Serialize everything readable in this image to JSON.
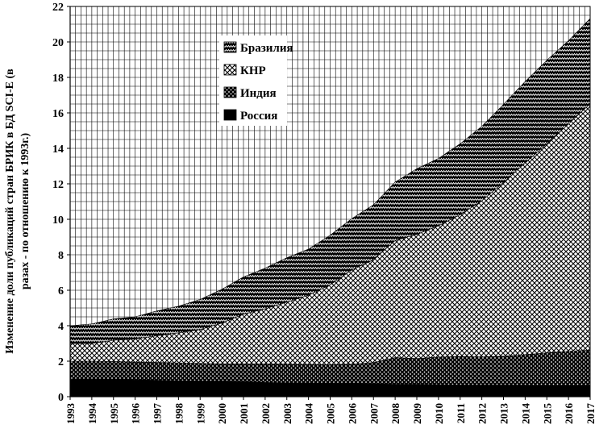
{
  "chart_data": {
    "type": "area",
    "stacked": true,
    "title": "",
    "ylabel_line1": "Изменение доли публикаций стран БРИК в БД SCI-E (в",
    "ylabel_line2": "разах - по отношению к 1993г.)",
    "xlabel": "",
    "ylim": [
      0,
      22
    ],
    "yticks": [
      "0",
      "2",
      "4",
      "6",
      "8",
      "10",
      "12",
      "14",
      "16",
      "18",
      "20",
      "22"
    ],
    "grid": true,
    "legend_position": "top-center",
    "x": [
      "1993",
      "1994",
      "1995",
      "1996",
      "1997",
      "1998",
      "1999",
      "2000",
      "2001",
      "2002",
      "2003",
      "2004",
      "2005",
      "2006",
      "2007",
      "2008",
      "2009",
      "2010",
      "2011",
      "2012",
      "2013",
      "2014",
      "2015",
      "2016",
      "2017"
    ],
    "series": [
      {
        "name": "Россия",
        "values": [
          1.0,
          1.0,
          0.98,
          0.95,
          0.93,
          0.9,
          0.88,
          0.85,
          0.83,
          0.8,
          0.78,
          0.77,
          0.75,
          0.74,
          0.72,
          0.7,
          0.7,
          0.68,
          0.66,
          0.64,
          0.63,
          0.62,
          0.62,
          0.62,
          0.62
        ]
      },
      {
        "name": "Индия",
        "values": [
          1.0,
          1.0,
          1.0,
          1.0,
          1.0,
          1.0,
          1.0,
          1.0,
          1.02,
          1.05,
          1.05,
          1.05,
          1.05,
          1.1,
          1.2,
          1.5,
          1.45,
          1.55,
          1.6,
          1.6,
          1.65,
          1.75,
          1.85,
          1.95,
          2.0
        ]
      },
      {
        "name": "КНР",
        "values": [
          1.0,
          1.0,
          1.2,
          1.3,
          1.5,
          1.7,
          1.9,
          2.3,
          2.8,
          3.1,
          3.5,
          3.9,
          4.5,
          5.3,
          5.8,
          6.6,
          7.0,
          7.4,
          8.0,
          8.8,
          9.8,
          10.8,
          11.8,
          12.8,
          13.9
        ]
      },
      {
        "name": "Бразилия",
        "values": [
          1.0,
          1.1,
          1.2,
          1.25,
          1.4,
          1.5,
          1.7,
          1.9,
          2.1,
          2.3,
          2.5,
          2.6,
          2.8,
          2.9,
          3.1,
          3.3,
          3.7,
          3.8,
          4.0,
          4.2,
          4.4,
          4.6,
          4.7,
          4.7,
          4.8
        ]
      }
    ],
    "legend_order": [
      "Бразилия",
      "КНР",
      "Индия",
      "Россия"
    ],
    "colors": {
      "Россия": "#000000",
      "Индия": "#000000",
      "КНР": "#000000",
      "Бразилия": "#000000",
      "grid": "#000000",
      "background": "#ffffff"
    },
    "fill_patterns": {
      "Россия": "solid-black",
      "Индия": "white-dots-on-black",
      "КНР": "black-diamond-mesh",
      "Бразилия": "black-zigzag"
    }
  }
}
